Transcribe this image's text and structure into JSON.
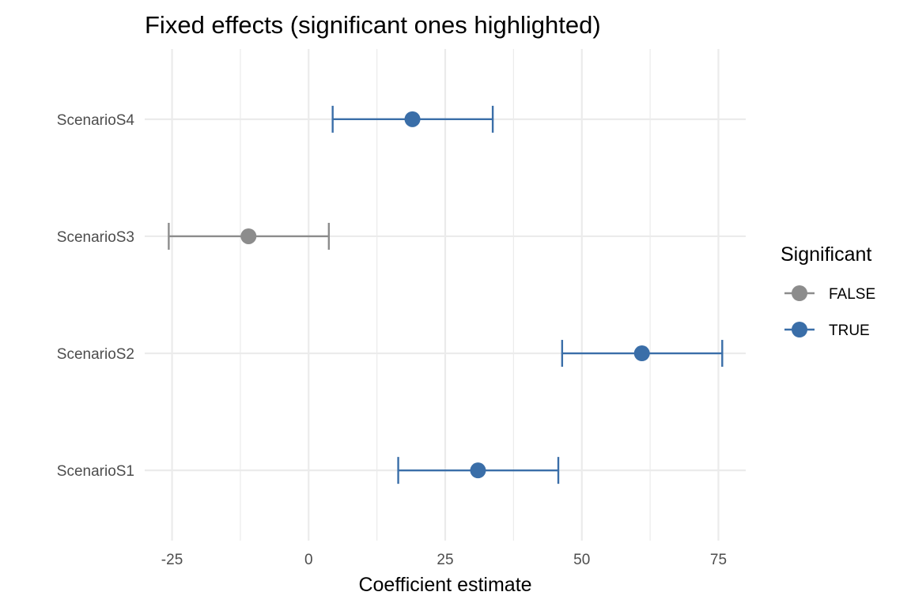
{
  "chart_data": {
    "type": "scatter",
    "title": "Fixed effects (significant ones highlighted)",
    "xlabel": "Coefficient estimate",
    "ylabel": "",
    "xlim": [
      -30,
      80
    ],
    "xticks": [
      -25,
      0,
      25,
      50,
      75
    ],
    "xtick_labels": [
      "-25",
      "0",
      "25",
      "50",
      "75"
    ],
    "grid": true,
    "categories": [
      "ScenarioS1",
      "ScenarioS2",
      "ScenarioS3",
      "ScenarioS4"
    ],
    "points": [
      {
        "term": "ScenarioS1",
        "estimate": 31.0,
        "lower": 16.4,
        "upper": 45.7,
        "significant": "TRUE"
      },
      {
        "term": "ScenarioS2",
        "estimate": 61.0,
        "lower": 46.4,
        "upper": 75.7,
        "significant": "TRUE"
      },
      {
        "term": "ScenarioS3",
        "estimate": -11.0,
        "lower": -25.6,
        "upper": 3.7,
        "significant": "FALSE"
      },
      {
        "term": "ScenarioS4",
        "estimate": 19.0,
        "lower": 4.4,
        "upper": 33.7,
        "significant": "TRUE"
      }
    ],
    "legend": {
      "title": "Significant",
      "placement": "right",
      "items": [
        {
          "label": "FALSE",
          "color": "#8c8c8c"
        },
        {
          "label": "TRUE",
          "color": "#3a6ea8"
        }
      ]
    },
    "colors": {
      "FALSE": "#8c8c8c",
      "TRUE": "#3a6ea8",
      "grid": "#ebebeb"
    }
  }
}
